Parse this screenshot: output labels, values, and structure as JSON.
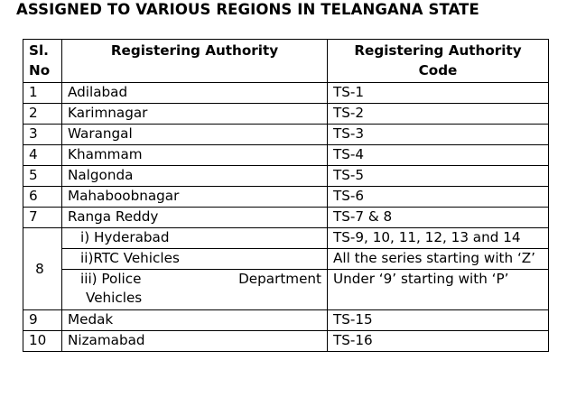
{
  "heading": "ASSIGNED TO VARIOUS REGIONS IN TELANGANA STATE",
  "columns": {
    "no_line1": "Sl.",
    "no_line2": "No",
    "authority": "Registering Authority",
    "code": "Registering Authority Code"
  },
  "rows": [
    {
      "no": "1",
      "authority": "Adilabad",
      "code": "TS-1"
    },
    {
      "no": "2",
      "authority": "Karimnagar",
      "code": "TS-2"
    },
    {
      "no": "3",
      "authority": "Warangal",
      "code": "TS-3"
    },
    {
      "no": "4",
      "authority": "Khammam",
      "code": "TS-4"
    },
    {
      "no": "5",
      "authority": "Nalgonda",
      "code": "TS-5"
    },
    {
      "no": "6",
      "authority": "Mahaboobnagar",
      "code": "TS-6"
    },
    {
      "no": "7",
      "authority": "Ranga Reddy",
      "code": "TS-7 & 8"
    }
  ],
  "row8": {
    "no": "8",
    "sub": [
      {
        "authority": "i) Hyderabad",
        "code": "TS-9, 10, 11, 12, 13 and 14"
      },
      {
        "authority": "ii)RTC Vehicles",
        "code": "All the series starting with ‘Z’"
      }
    ],
    "police": {
      "authority_part1": "iii) Police",
      "authority_part2": "Department",
      "authority_line2": "Vehicles",
      "code": "Under ‘9’ starting with ‘P’"
    }
  },
  "rows_after": [
    {
      "no": "9",
      "authority": "Medak",
      "code": "TS-15"
    },
    {
      "no": "10",
      "authority": "Nizamabad",
      "code": "TS-16"
    }
  ]
}
